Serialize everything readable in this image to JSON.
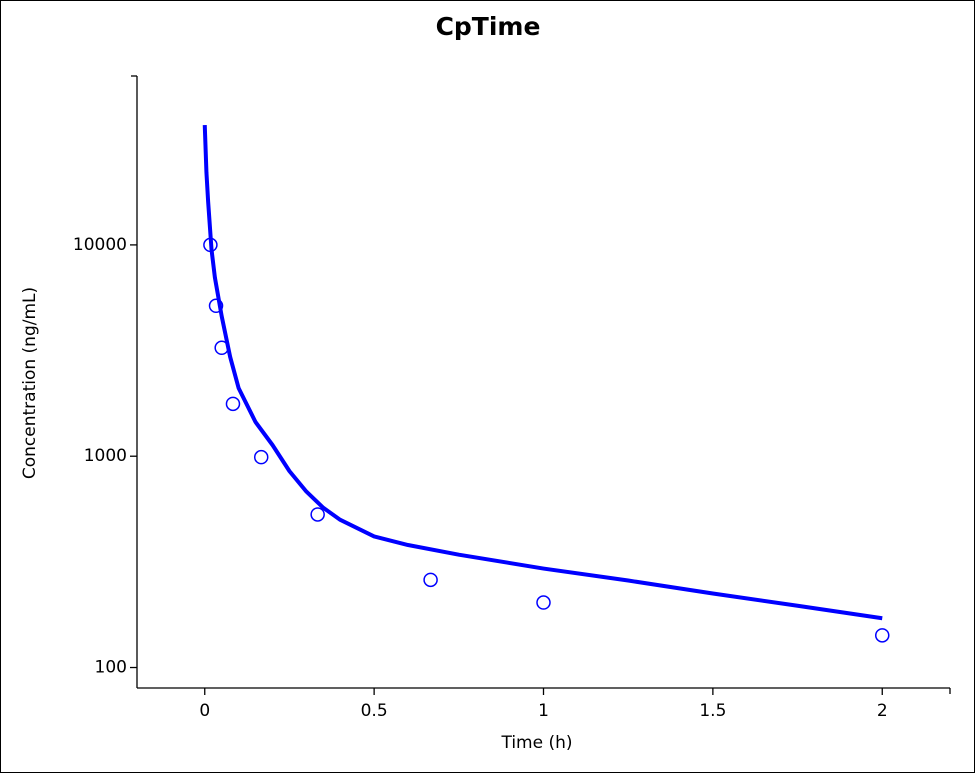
{
  "chart_data": {
    "type": "line",
    "title": "CpTime",
    "x_label": "Time (h)",
    "y_label": "Concentration (ng/mL)",
    "xlim": [
      -0.2,
      2.2
    ],
    "xticks": [
      0,
      0.5,
      1,
      1.5,
      2
    ],
    "ylim": [
      80,
      63000
    ],
    "yticks": [
      100,
      1000,
      10000
    ],
    "y_scale": "log",
    "grid": false,
    "series": [
      {
        "type": "line",
        "color": "#0000ff",
        "x": [
          0,
          0.005,
          0.01,
          0.02,
          0.03,
          0.05,
          0.075,
          0.1,
          0.15,
          0.2,
          0.25,
          0.3,
          0.35,
          0.4,
          0.5,
          0.6,
          0.75,
          1,
          1.25,
          1.5,
          1.75,
          2
        ],
        "values": [
          36900,
          22000,
          16000,
          9500,
          7000,
          4600,
          2950,
          2100,
          1450,
          1130,
          850,
          680,
          570,
          500,
          417,
          380,
          342,
          294,
          258,
          224,
          196,
          171
        ]
      },
      {
        "type": "scatter",
        "color": "#0000ff",
        "x": [
          0.0167,
          0.0333,
          0.05,
          0.0833,
          0.1667,
          0.3333,
          0.6667,
          1,
          2
        ],
        "values": [
          10000,
          5150,
          3260,
          1770,
          990,
          530,
          260,
          203,
          142
        ]
      }
    ]
  }
}
